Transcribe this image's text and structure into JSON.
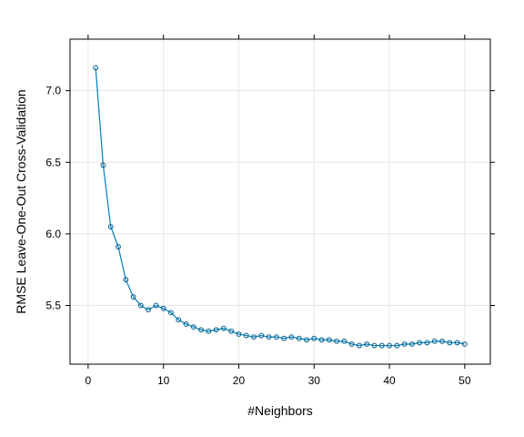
{
  "chart_data": {
    "type": "line",
    "title": "",
    "xlabel": "#Neighbors",
    "ylabel": "RMSE Leave-One-Out Cross-Validation",
    "xlim": [
      -2.4,
      53.4
    ],
    "ylim": [
      5.09,
      7.36
    ],
    "x_ticks": [
      0,
      10,
      20,
      30,
      40,
      50
    ],
    "y_ticks": [
      5.5,
      6.0,
      6.5,
      7.0
    ],
    "x_tick_labels": [
      "0",
      "10",
      "20",
      "30",
      "40",
      "50"
    ],
    "y_tick_labels": [
      "5.5",
      "6.0",
      "6.5",
      "7.0"
    ],
    "grid": true,
    "marker": "open-circle",
    "colors": {
      "line": "#0080b8",
      "marker": "#005b8c",
      "grid": "#e6e6e6",
      "frame": "#000000"
    },
    "series": [
      {
        "x": [
          1,
          2,
          3,
          4,
          5,
          6,
          7,
          8,
          9,
          10,
          11,
          12,
          13,
          14,
          15,
          16,
          17,
          18,
          19,
          20,
          21,
          22,
          23,
          24,
          25,
          26,
          27,
          28,
          29,
          30,
          31,
          32,
          33,
          34,
          35,
          36,
          37,
          38,
          39,
          40,
          41,
          42,
          43,
          44,
          45,
          46,
          47,
          48,
          49,
          50
        ],
        "y": [
          7.16,
          6.48,
          6.05,
          5.91,
          5.68,
          5.56,
          5.5,
          5.47,
          5.5,
          5.48,
          5.45,
          5.4,
          5.37,
          5.35,
          5.33,
          5.32,
          5.33,
          5.34,
          5.32,
          5.3,
          5.29,
          5.28,
          5.29,
          5.28,
          5.28,
          5.27,
          5.28,
          5.27,
          5.26,
          5.27,
          5.26,
          5.26,
          5.25,
          5.25,
          5.23,
          5.22,
          5.23,
          5.22,
          5.22,
          5.22,
          5.22,
          5.23,
          5.23,
          5.24,
          5.24,
          5.25,
          5.25,
          5.24,
          5.24,
          5.23
        ]
      }
    ]
  }
}
